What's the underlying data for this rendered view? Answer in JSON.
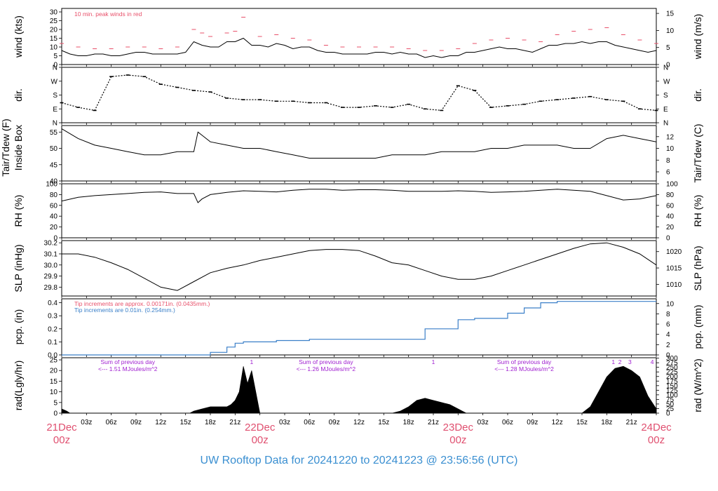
{
  "chart_data": {
    "type": "line",
    "title": "UW Rooftop Data for 20241220  to  20241223 @ 23:56:56  (UTC)",
    "colors": {
      "peak": "#e8506a",
      "pcp_a": "#e8506a",
      "pcp_b": "#3a7fc8",
      "notes": "#a020d0",
      "date": "#e05070",
      "footer": "#3a8fd1"
    },
    "x": {
      "ticks_z": [
        "03z",
        "06z",
        "09z",
        "12z",
        "15z",
        "18z",
        "21z"
      ],
      "date_ticks": [
        {
          "hour": 0,
          "label": "21Dec",
          "sub": "00z"
        },
        {
          "hour": 24,
          "label": "22Dec",
          "sub": "00z"
        },
        {
          "hour": 48,
          "label": "23Dec",
          "sub": "00z"
        },
        {
          "hour": 72,
          "label": "24Dec",
          "sub": "00z"
        }
      ],
      "range_hours": [
        0,
        72
      ]
    },
    "panels": [
      {
        "id": "wind",
        "ylabel_left": "wind (kts)",
        "ylabel_right": "wind (m/s)",
        "ylim": [
          0,
          32
        ],
        "yticks_left": [
          0,
          5,
          10,
          15,
          20,
          25,
          30
        ],
        "yticks_right": [
          0,
          5,
          10,
          15
        ],
        "annotation": "10 min. peak winds in red",
        "series": [
          {
            "name": "wind",
            "x_hours": [
              0,
              1,
              2,
              3,
              4,
              5,
              6,
              7,
              8,
              9,
              10,
              11,
              12,
              13,
              14,
              15,
              16,
              17,
              18,
              19,
              20,
              21,
              22,
              23,
              24,
              25,
              26,
              27,
              28,
              29,
              30,
              31,
              32,
              33,
              34,
              35,
              36,
              37,
              38,
              39,
              40,
              41,
              42,
              43,
              44,
              45,
              46,
              47,
              48,
              49,
              50,
              51,
              52,
              53,
              54,
              55,
              56,
              57,
              58,
              59,
              60,
              61,
              62,
              63,
              64,
              65,
              66,
              67,
              68,
              69,
              70,
              71,
              72
            ],
            "y": [
              8,
              6,
              5,
              5,
              6,
              6,
              5,
              5,
              6,
              7,
              7,
              6,
              6,
              6,
              6,
              7,
              13,
              11,
              10,
              10,
              13,
              13,
              15,
              11,
              11,
              10,
              12,
              11,
              9,
              10,
              10,
              8,
              7,
              7,
              6,
              6,
              6,
              6,
              7,
              7,
              6,
              7,
              6,
              6,
              4,
              5,
              4,
              5,
              5,
              7,
              7,
              8,
              9,
              10,
              9,
              9,
              8,
              7,
              9,
              11,
              11,
              12,
              12,
              13,
              12,
              13,
              13,
              11,
              10,
              9,
              8,
              7,
              8
            ]
          },
          {
            "name": "10 min. peak winds",
            "x_hours": [
              0,
              2,
              4,
              6,
              8,
              10,
              12,
              14,
              16,
              17,
              18,
              20,
              21,
              22,
              24,
              26,
              28,
              30,
              32,
              34,
              36,
              38,
              40,
              42,
              44,
              46,
              48,
              50,
              52,
              54,
              56,
              58,
              60,
              62,
              64,
              66,
              68,
              70,
              72
            ],
            "y": [
              12,
              10,
              9,
              9,
              10,
              10,
              9,
              10,
              20,
              18,
              16,
              18,
              19,
              27,
              16,
              17,
              15,
              14,
              11,
              10,
              10,
              10,
              10,
              9,
              8,
              8,
              9,
              12,
              14,
              15,
              14,
              13,
              17,
              19,
              20,
              21,
              17,
              14,
              12
            ]
          }
        ]
      },
      {
        "id": "dir",
        "ylabel_left": "dir.",
        "ylabel_right": "dir.",
        "ycats": [
          "N",
          "E",
          "S",
          "W",
          "N"
        ],
        "series": [
          {
            "name": "wind direction",
            "x_hours": [
              0,
              2,
              4,
              6,
              8,
              10,
              12,
              14,
              16,
              18,
              20,
              22,
              24,
              26,
              28,
              30,
              32,
              34,
              36,
              38,
              40,
              42,
              44,
              46,
              48,
              50,
              52,
              54,
              56,
              58,
              60,
              62,
              64,
              66,
              68,
              70,
              72
            ],
            "y_deg": [
              130,
              100,
              80,
              300,
              310,
              300,
              250,
              230,
              210,
              200,
              160,
              150,
              150,
              140,
              140,
              130,
              130,
              100,
              100,
              110,
              100,
              120,
              90,
              80,
              240,
              210,
              100,
              110,
              120,
              140,
              150,
              160,
              170,
              150,
              140,
              90,
              80
            ]
          }
        ]
      },
      {
        "id": "temp",
        "ylabel_left": "Tair/Tdew (F)",
        "ylabel_left2": "Inside Box",
        "ylabel_right": "Tair/Tdew (C)",
        "ylim": [
          40,
          57
        ],
        "yticks_left": [
          40,
          45,
          50,
          55
        ],
        "yticks_right": [
          6,
          8,
          10,
          12
        ],
        "series": [
          {
            "name": "Tair",
            "x_hours": [
              0,
              2,
              4,
              6,
              8,
              10,
              12,
              14,
              16,
              16.5,
              17,
              18,
              20,
              22,
              24,
              26,
              28,
              30,
              32,
              34,
              36,
              38,
              40,
              42,
              44,
              46,
              48,
              50,
              52,
              54,
              56,
              58,
              60,
              62,
              64,
              66,
              68,
              70,
              72
            ],
            "y": [
              56,
              53,
              51,
              50,
              49,
              48,
              48,
              49,
              49,
              55,
              54,
              52,
              51,
              50,
              50,
              49,
              48,
              47,
              47,
              47,
              47,
              47,
              48,
              48,
              48,
              49,
              49,
              49,
              50,
              50,
              51,
              51,
              51,
              50,
              50,
              53,
              54,
              53,
              52
            ]
          }
        ]
      },
      {
        "id": "rh",
        "ylabel_left": "RH (%)",
        "ylabel_right": "RH (%)",
        "ylim": [
          0,
          100
        ],
        "yticks_left": [
          0,
          20,
          40,
          60,
          80,
          100
        ],
        "yticks_right": [
          0,
          20,
          40,
          60,
          80,
          100
        ],
        "series": [
          {
            "name": "RH",
            "x_hours": [
              0,
              2,
              4,
              6,
              8,
              10,
              12,
              14,
              16,
              16.5,
              17,
              18,
              20,
              22,
              24,
              26,
              28,
              30,
              32,
              34,
              36,
              38,
              40,
              42,
              44,
              46,
              48,
              50,
              52,
              54,
              56,
              58,
              60,
              62,
              64,
              66,
              68,
              70,
              72
            ],
            "y": [
              68,
              75,
              78,
              80,
              82,
              84,
              85,
              82,
              82,
              65,
              72,
              80,
              84,
              87,
              86,
              85,
              88,
              90,
              90,
              88,
              89,
              89,
              88,
              86,
              86,
              86,
              87,
              86,
              84,
              85,
              86,
              88,
              90,
              88,
              86,
              78,
              70,
              72,
              78
            ]
          }
        ]
      },
      {
        "id": "slp",
        "ylabel_left": "SLP (inHg)",
        "ylabel_right": "SLP (hPa)",
        "ylim": [
          29.72,
          30.22
        ],
        "yticks_left": [
          29.8,
          29.9,
          30.0,
          30.1,
          30.2
        ],
        "yticks_right": [
          1010,
          1015,
          1020
        ],
        "series": [
          {
            "name": "SLP",
            "x_hours": [
              0,
              2,
              4,
              6,
              8,
              10,
              12,
              14,
              16,
              18,
              20,
              22,
              24,
              26,
              28,
              30,
              32,
              34,
              36,
              38,
              40,
              42,
              44,
              46,
              48,
              50,
              52,
              54,
              56,
              58,
              60,
              62,
              64,
              66,
              68,
              70,
              72
            ],
            "y": [
              30.1,
              30.1,
              30.07,
              30.02,
              29.96,
              29.88,
              29.8,
              29.77,
              29.85,
              29.93,
              29.97,
              30.0,
              30.04,
              30.07,
              30.1,
              30.13,
              30.14,
              30.14,
              30.13,
              30.08,
              30.02,
              30.0,
              29.95,
              29.9,
              29.87,
              29.87,
              29.9,
              29.95,
              30.0,
              30.05,
              30.1,
              30.15,
              30.19,
              30.2,
              30.16,
              30.1,
              30.0
            ]
          }
        ]
      },
      {
        "id": "pcp",
        "ylabel_left": "pcp. (in)",
        "ylabel_right": "pcp. (mm)",
        "ylim": [
          0,
          0.43
        ],
        "yticks_left": [
          0.0,
          0.1,
          0.2,
          0.3,
          0.4
        ],
        "yticks_right": [
          0,
          2,
          4,
          6,
          8,
          10
        ],
        "annotations": [
          "Tip increments are approx. 0.00171in. (0.0435mm.)",
          "Tip increments are 0.01in. (0.254mm.)"
        ],
        "series": [
          {
            "name": "pcp",
            "x_hours": [
              0,
              16,
              18,
              20,
              21,
              22,
              24,
              26,
              30,
              34,
              38,
              40,
              42,
              44,
              48,
              50,
              52,
              54,
              56,
              58,
              60,
              62,
              64,
              66,
              68,
              70,
              72
            ],
            "y": [
              0.0,
              0.0,
              0.02,
              0.06,
              0.09,
              0.1,
              0.1,
              0.11,
              0.12,
              0.12,
              0.12,
              0.12,
              0.12,
              0.2,
              0.27,
              0.28,
              0.28,
              0.32,
              0.36,
              0.4,
              0.41,
              0.41,
              0.41,
              0.41,
              0.41,
              0.41,
              0.41
            ]
          }
        ]
      },
      {
        "id": "rad",
        "ylabel_left": "rad(Lgly/hr)",
        "ylabel_right": "rad (W/m^2)",
        "ylim": [
          0,
          26
        ],
        "yticks_left": [
          0,
          5,
          10,
          15,
          20,
          25
        ],
        "yticks_right": [
          0,
          25,
          50,
          75,
          100,
          125,
          150,
          175,
          200,
          225,
          250,
          275,
          300
        ],
        "notes": [
          {
            "hour": 8,
            "line1": "Sum of previous day",
            "line2": "<--- 1.51 MJoules/m^2"
          },
          {
            "hour": 32,
            "line1": "Sum of previous day",
            "line2": "<--- 1.26 MJoules/m^2"
          },
          {
            "hour": 56,
            "line1": "Sum of previous day",
            "line2": "<--- 1.28 MJoules/m^2"
          }
        ],
        "markers": [
          {
            "hour": 23,
            "label": "1"
          },
          {
            "hour": 45,
            "label": "1"
          },
          {
            "hour": 66.8,
            "label": "1"
          },
          {
            "hour": 67.6,
            "label": "2"
          },
          {
            "hour": 68.8,
            "label": "3"
          },
          {
            "hour": 71.5,
            "label": "4"
          }
        ],
        "series": [
          {
            "name": "radiation",
            "x_hours": [
              0,
              0.6,
              1,
              15.5,
              16,
              17,
              18,
              19,
              20,
              20.5,
              21,
              21.5,
              22,
              22.5,
              23,
              23.5,
              24,
              40,
              41,
              42,
              43,
              44,
              45,
              46,
              47,
              48,
              48.5,
              49,
              63,
              64,
              65,
              66,
              67,
              68,
              69,
              70,
              71,
              72
            ],
            "y": [
              2,
              1,
              0,
              0,
              1,
              2,
              3,
              3,
              3,
              4,
              6,
              10,
              22,
              14,
              20,
              10,
              0,
              0,
              1,
              3,
              6,
              7,
              6,
              5,
              4,
              2,
              1,
              0,
              0,
              3,
              10,
              17,
              21,
              22,
              20,
              17,
              8,
              2
            ]
          }
        ]
      }
    ]
  },
  "footer": {
    "title": "UW Rooftop Data for 20241220  to  20241223 @ 23:56:56  (UTC)"
  }
}
